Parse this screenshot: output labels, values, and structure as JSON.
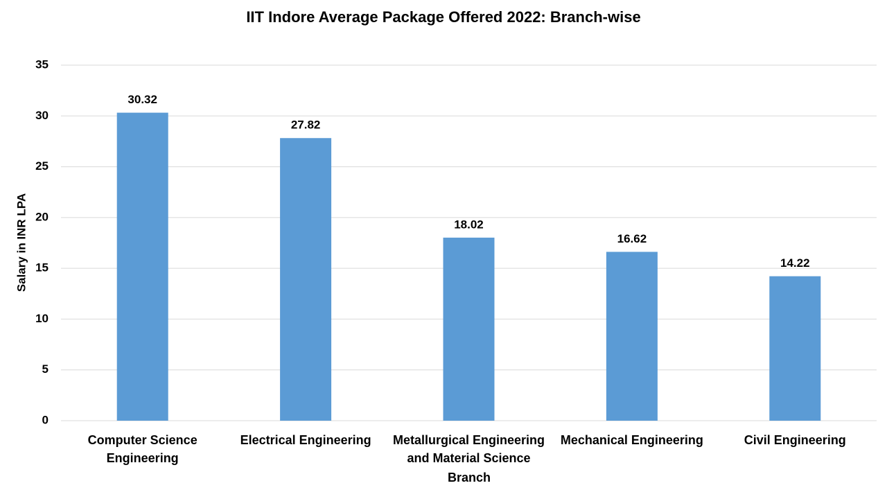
{
  "chart_data": {
    "type": "bar",
    "title": "IIT Indore Average Package Offered 2022: Branch-wise",
    "x_label": "Branch",
    "y_label": "Salary in INR LPA",
    "categories": [
      "Computer Science Engineering",
      "Electrical Engineering",
      "Metallurgical Engineering and Material Science",
      "Mechanical Engineering",
      "Civil Engineering"
    ],
    "values": [
      30.32,
      27.82,
      18.02,
      16.62,
      14.22
    ],
    "color": "#5b9bd5",
    "ylim": [
      0,
      35
    ],
    "yticks": [
      0,
      5,
      10,
      15,
      20,
      25,
      30,
      35
    ],
    "grid": true
  }
}
